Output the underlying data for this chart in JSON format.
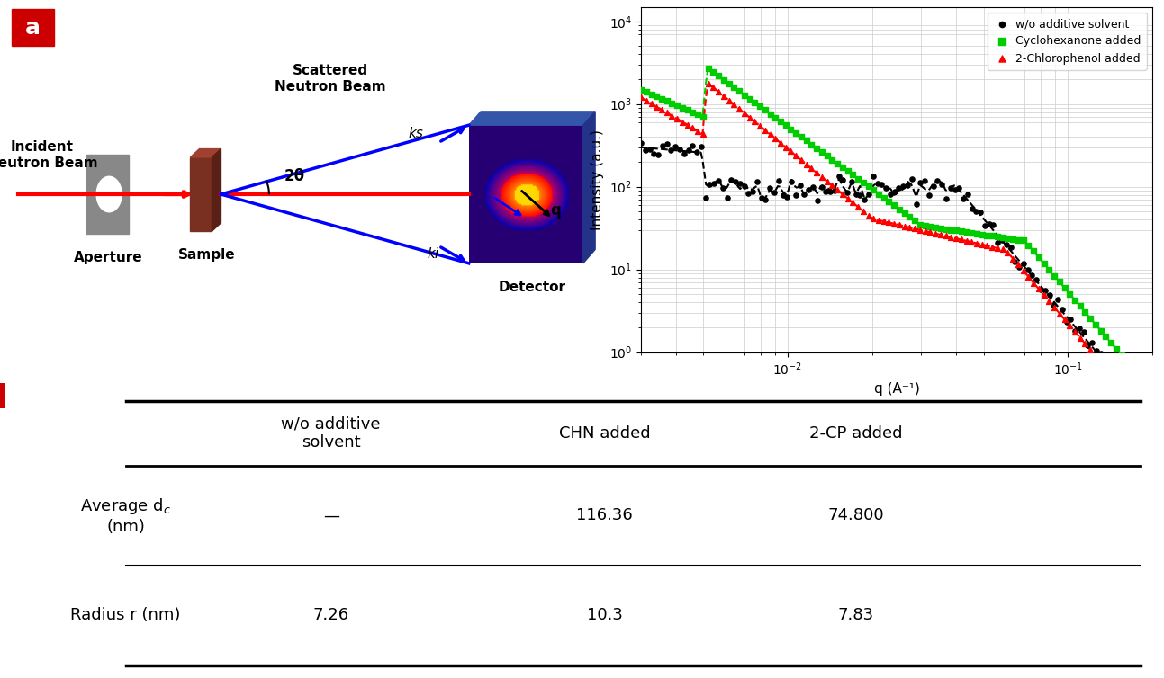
{
  "panel_label_color": "#cc0000",
  "diagram_labels": {
    "aperture": "Aperture",
    "sample": "Sample",
    "incident": "Incident\nNeutron Beam",
    "scattered": "Scattered\nNeutron Beam",
    "ks": "ks",
    "ki": "ki",
    "angle": "2θ",
    "q": "q",
    "detector": "Detector"
  },
  "xlabel_b": "q (A⁻¹)",
  "ylabel_b": "Intensity (a.u.)",
  "legend_labels": [
    "w/o additive solvent",
    "Cyclohexanone added",
    "2-Chlorophenol added"
  ],
  "legend_colors": [
    "black",
    "#00cc00",
    "red"
  ],
  "legend_markers": [
    "o",
    "s",
    "^"
  ],
  "table_col_labels": [
    "w/o additive\nsolvent",
    "CHN added",
    "2-CP added"
  ],
  "table_row_labels": [
    "Average dₙ\n(nm)",
    "Radius r (nm)"
  ],
  "table_data": [
    [
      "—",
      "116.36",
      "74.800"
    ],
    [
      "7.26",
      "10.3",
      "7.83"
    ]
  ],
  "bg_color": "white",
  "grid_color": "#cccccc"
}
